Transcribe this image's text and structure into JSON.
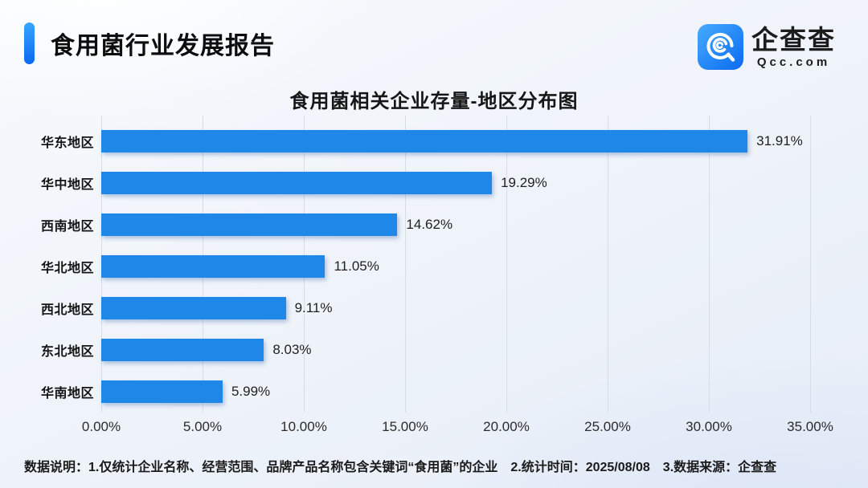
{
  "header": {
    "title": "食用菌行业发展报告"
  },
  "logo": {
    "name": "企查查",
    "domain": "Qcc.com",
    "icon_gradient": [
      "#45abff",
      "#0b6bf0"
    ]
  },
  "chart_data": {
    "type": "bar",
    "orientation": "horizontal",
    "title": "食用菌相关企业存量-地区分布图",
    "categories": [
      "华东地区",
      "华中地区",
      "西南地区",
      "华北地区",
      "西北地区",
      "东北地区",
      "华南地区"
    ],
    "values": [
      31.91,
      19.29,
      14.62,
      11.05,
      9.11,
      8.03,
      5.99
    ],
    "value_labels": [
      "31.91%",
      "19.29%",
      "14.62%",
      "11.05%",
      "9.11%",
      "8.03%",
      "5.99%"
    ],
    "xlim": [
      0,
      35
    ],
    "x_ticks": [
      "0.00%",
      "5.00%",
      "10.00%",
      "15.00%",
      "20.00%",
      "25.00%",
      "30.00%",
      "35.00%"
    ],
    "grid": true,
    "bar_color": "#1e87e8",
    "legend_position": "none"
  },
  "footer": {
    "items": [
      "数据说明：1.仅统计企业名称、经营范围、品牌产品名称包含关键词“食用菌”的企业",
      "2.统计时间：2025/08/08",
      "3.数据来源：企查查"
    ]
  }
}
